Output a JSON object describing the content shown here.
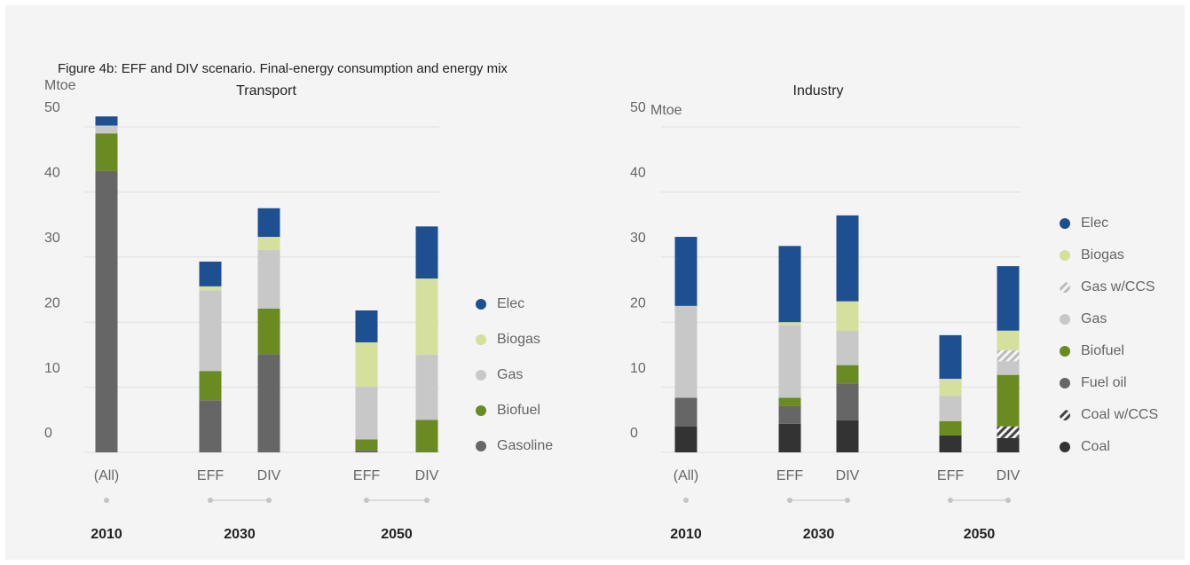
{
  "title": "Figure 4b: EFF and DIV scenario. Final-energy consumption and energy mix",
  "chart_data": [
    {
      "type": "stacked_bar",
      "title": "Transport",
      "y_label": "Mtoe",
      "groups": [
        {
          "label": "2010",
          "categories": [
            "(All)"
          ]
        },
        {
          "label": "2030",
          "categories": [
            "EFF",
            "DIV"
          ]
        },
        {
          "label": "2050",
          "categories": [
            "EFF",
            "DIV"
          ]
        }
      ],
      "ylim": [
        0,
        50
      ],
      "yticks": [
        0,
        10,
        20,
        30,
        40,
        50
      ],
      "grid": true,
      "series": [
        {
          "name": "Gasoline",
          "color": "#666666",
          "values": [
            43.2,
            8.0,
            15.1,
            0.3,
            0
          ]
        },
        {
          "name": "Biofuel",
          "color": "#6a8a22",
          "values": [
            5.8,
            4.5,
            7.0,
            1.7,
            5.0
          ]
        },
        {
          "name": "Gas",
          "color": "#c8c8c8",
          "values": [
            1.2,
            12.4,
            9.0,
            8.1,
            10.0
          ]
        },
        {
          "name": "Biogas",
          "color": "#d4e09b",
          "values": [
            0,
            0.6,
            2.0,
            6.8,
            11.7
          ]
        },
        {
          "name": "Elec",
          "color": "#1d4f91",
          "values": [
            1.4,
            3.8,
            4.4,
            4.9,
            8.0
          ]
        }
      ]
    },
    {
      "type": "stacked_bar",
      "title": "Industry",
      "y_label": "Mtoe",
      "groups": [
        {
          "label": "2010",
          "categories": [
            "(All)"
          ]
        },
        {
          "label": "2030",
          "categories": [
            "EFF",
            "DIV"
          ]
        },
        {
          "label": "2050",
          "categories": [
            "EFF",
            "DIV"
          ]
        }
      ],
      "ylim": [
        0,
        50
      ],
      "yticks": [
        0,
        10,
        20,
        30,
        40,
        50
      ],
      "grid": true,
      "series": [
        {
          "name": "Coal",
          "color": "#333333",
          "values": [
            4.0,
            4.4,
            4.9,
            2.6,
            2.2
          ]
        },
        {
          "name": "Coal w/CCS",
          "color": "#444444",
          "hatch": true,
          "values": [
            0,
            0,
            0,
            0,
            1.8
          ]
        },
        {
          "name": "Fuel oil",
          "color": "#666666",
          "values": [
            4.4,
            2.7,
            5.7,
            0,
            0
          ]
        },
        {
          "name": "Biofuel",
          "color": "#6a8a22",
          "values": [
            0,
            1.3,
            2.8,
            2.2,
            7.9
          ]
        },
        {
          "name": "Gas",
          "color": "#c8c8c8",
          "values": [
            14.1,
            11.1,
            5.3,
            3.9,
            2.1
          ]
        },
        {
          "name": "Gas w/CCS",
          "color": "#bbbbbb",
          "hatch": true,
          "values": [
            0,
            0,
            0,
            0,
            1.7
          ]
        },
        {
          "name": "Biogas",
          "color": "#d4e09b",
          "values": [
            0,
            0.5,
            4.5,
            2.6,
            3.0
          ]
        },
        {
          "name": "Elec",
          "color": "#1d4f91",
          "values": [
            10.6,
            11.7,
            13.2,
            6.7,
            9.9
          ]
        }
      ]
    }
  ]
}
